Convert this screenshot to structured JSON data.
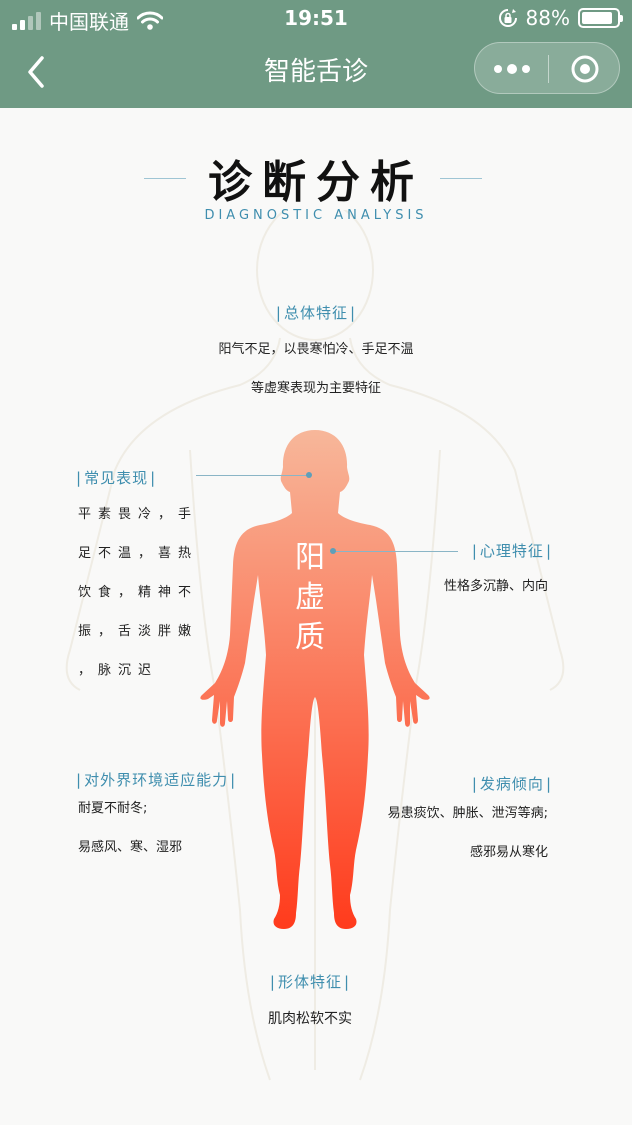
{
  "status_bar": {
    "carrier": "中国联通",
    "time": "19:51",
    "battery_percent": "88%",
    "battery_level": 0.88
  },
  "navbar": {
    "title": "智能舌诊"
  },
  "heading": {
    "title_zh": "诊断分析",
    "title_en": "DIAGNOSTIC ANALYSIS"
  },
  "constitution": {
    "chars": [
      "阳",
      "虚",
      "质"
    ]
  },
  "sections": {
    "overall": {
      "title": "总体特征",
      "lines": [
        "阳气不足，以畏寒怕冷、手足不温",
        "等虚寒表现为主要特征"
      ]
    },
    "common": {
      "title": "常见表现",
      "lines": [
        "平素畏冷，手",
        "足不温，喜热",
        "饮食，精神不",
        "振，舌淡胖嫩",
        "，脉沉迟"
      ]
    },
    "psychology": {
      "title": "心理特征",
      "lines": [
        "性格多沉静、内向"
      ]
    },
    "adaptability": {
      "title": "对外界环境适应能力",
      "lines": [
        "耐夏不耐冬;",
        "易感风、寒、湿邪"
      ]
    },
    "disease": {
      "title": "发病倾向",
      "lines": [
        "易患痰饮、肿胀、泄泻等病;",
        "感邪易从寒化"
      ]
    },
    "body_shape": {
      "title": "形体特征",
      "lines": [
        "肌肉松软不实"
      ]
    }
  },
  "colors": {
    "header_bg": "#6f9a84",
    "accent": "#3f8eae",
    "figure_top": "#f7b79a",
    "figure_bottom": "#ff3b1c"
  }
}
